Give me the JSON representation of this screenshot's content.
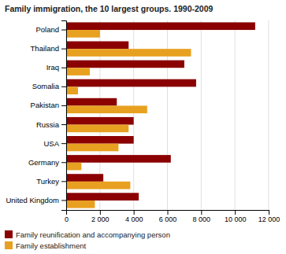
{
  "chart_data": {
    "type": "bar",
    "orientation": "horizontal",
    "title": "Family immigration, the 10 largest groups. 1990-2009",
    "categories": [
      "Poland",
      "Thailand",
      "Iraq",
      "Somalia",
      "Pakistan",
      "Russia",
      "USA",
      "Germany",
      "Turkey",
      "United Kingdom"
    ],
    "series": [
      {
        "name": "Family reunification and accompanying person",
        "color": "#8B0000",
        "values": [
          11200,
          3700,
          7000,
          7700,
          3000,
          4000,
          4000,
          6200,
          2200,
          4300
        ]
      },
      {
        "name": "Family establishment",
        "color": "#E8A020",
        "values": [
          2000,
          7400,
          1400,
          700,
          4800,
          3700,
          3100,
          900,
          3800,
          1700
        ]
      }
    ],
    "xlim": [
      0,
      12000
    ],
    "xticks": [
      0,
      {
        "value": 2000,
        "label": "2 000"
      },
      {
        "value": 4000,
        "label": "4 000"
      },
      {
        "value": 6000,
        "label": "6 000"
      },
      {
        "value": 8000,
        "label": "8 000"
      },
      {
        "value": 10000,
        "label": "10 000"
      },
      {
        "value": 12000,
        "label": "12 000"
      }
    ],
    "grid": true,
    "legend": "bottom"
  }
}
